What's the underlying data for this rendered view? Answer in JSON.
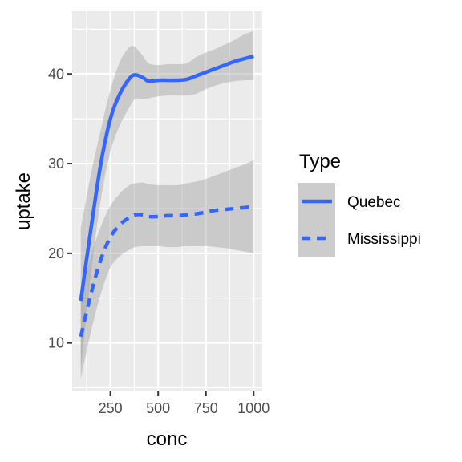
{
  "chart_data": {
    "type": "line",
    "xlabel": "conc",
    "ylabel": "uptake",
    "xlim": [
      50,
      1045
    ],
    "ylim": [
      4.6,
      47
    ],
    "x_ticks": [
      250,
      500,
      750,
      1000
    ],
    "x_tick_labels": [
      "250",
      "500",
      "750",
      "1000"
    ],
    "y_ticks": [
      10,
      20,
      30,
      40
    ],
    "y_tick_labels": [
      "10",
      "20",
      "30",
      "40"
    ],
    "grid": true,
    "legend": {
      "title": "Type",
      "placement": "right",
      "entries": [
        {
          "label": "Quebec",
          "linetype": "solid"
        },
        {
          "label": "Mississippi",
          "linetype": "dashed"
        }
      ]
    },
    "series": [
      {
        "name": "Quebec",
        "linetype": "solid",
        "x": [
          95,
          150,
          200,
          250,
          300,
          350,
          380,
          420,
          450,
          500,
          550,
          600,
          650,
          700,
          750,
          800,
          850,
          900,
          950,
          1000
        ],
        "y": [
          14.7,
          23.0,
          30.0,
          35.0,
          37.8,
          39.5,
          39.9,
          39.6,
          39.2,
          39.3,
          39.3,
          39.3,
          39.4,
          39.8,
          40.2,
          40.6,
          41.0,
          41.4,
          41.7,
          42.0
        ],
        "lower": [
          7.0,
          18.0,
          26.0,
          31.3,
          34.3,
          36.3,
          37.2,
          37.2,
          37.3,
          37.5,
          37.6,
          37.6,
          37.6,
          37.8,
          38.3,
          38.7,
          39.0,
          39.2,
          39.3,
          39.3
        ],
        "upper": [
          22.8,
          29.0,
          33.8,
          38.2,
          41.4,
          43.0,
          43.0,
          42.0,
          41.2,
          41.0,
          41.1,
          41.1,
          41.2,
          41.9,
          42.4,
          42.8,
          43.3,
          43.8,
          44.4,
          44.8
        ]
      },
      {
        "name": "Mississippi",
        "linetype": "dashed",
        "x": [
          95,
          150,
          200,
          250,
          300,
          350,
          380,
          420,
          450,
          500,
          550,
          600,
          650,
          700,
          750,
          800,
          850,
          900,
          950,
          1000
        ],
        "y": [
          10.7,
          15.6,
          19.3,
          21.8,
          23.2,
          24.0,
          24.3,
          24.3,
          24.1,
          24.1,
          24.2,
          24.2,
          24.3,
          24.4,
          24.6,
          24.8,
          24.9,
          25.0,
          25.1,
          25.2
        ],
        "lower": [
          6.0,
          11.4,
          15.5,
          18.4,
          19.7,
          20.4,
          20.7,
          20.8,
          20.8,
          20.8,
          20.7,
          20.7,
          20.8,
          20.8,
          20.8,
          20.7,
          20.6,
          20.4,
          20.2,
          20.0
        ],
        "upper": [
          15.4,
          19.8,
          23.0,
          25.3,
          26.7,
          27.6,
          27.8,
          27.9,
          27.7,
          27.6,
          27.6,
          27.6,
          27.8,
          28.0,
          28.3,
          28.7,
          29.1,
          29.5,
          29.9,
          30.4
        ]
      }
    ],
    "colors": {
      "line": "#3366ff",
      "ribbon": "#999999",
      "panel": "#ebebeb",
      "grid": "#ffffff",
      "legend_key": "#cccccc"
    }
  }
}
